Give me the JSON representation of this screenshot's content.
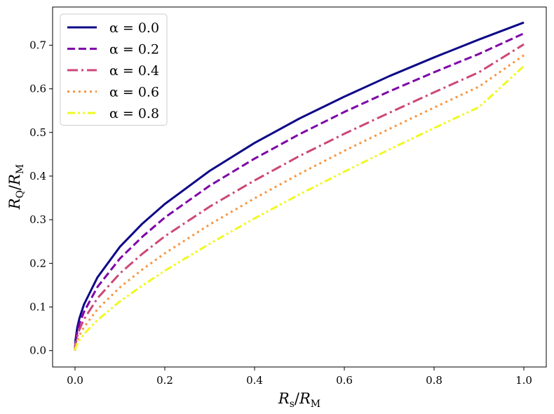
{
  "chart_data": {
    "type": "line",
    "xlabel": {
      "main": "R",
      "sub": "s",
      "sep": "/",
      "main2": "R",
      "sub2": "M"
    },
    "ylabel": {
      "main": "R",
      "sub": "Q",
      "sep": "/",
      "main2": "R",
      "sub2": "M"
    },
    "xlim": [
      -0.05,
      1.05
    ],
    "ylim": [
      -0.0375,
      0.7875
    ],
    "xticks": [
      0.0,
      0.2,
      0.4,
      0.6,
      0.8,
      1.0
    ],
    "xtick_labels": [
      "0.0",
      "0.2",
      "0.4",
      "0.6",
      "0.8",
      "1.0"
    ],
    "yticks": [
      0.0,
      0.1,
      0.2,
      0.3,
      0.4,
      0.5,
      0.6,
      0.7
    ],
    "ytick_labels": [
      "0.0",
      "0.1",
      "0.2",
      "0.3",
      "0.4",
      "0.5",
      "0.6",
      "0.7"
    ],
    "grid": false,
    "legend_position": "top-left",
    "x": [
      0.0,
      0.001,
      0.005,
      0.01,
      0.02,
      0.05,
      0.1,
      0.15,
      0.2,
      0.3,
      0.4,
      0.5,
      0.6,
      0.7,
      0.8,
      0.9,
      1.0
    ],
    "series": [
      {
        "name": "α = 0.0",
        "color": "#0d0887",
        "dash": "solid",
        "values": [
          0.0,
          0.024,
          0.053,
          0.075,
          0.106,
          0.168,
          0.238,
          0.291,
          0.336,
          0.412,
          0.476,
          0.532,
          0.582,
          0.629,
          0.672,
          0.713,
          0.752
        ]
      },
      {
        "name": "α = 0.2",
        "color": "#7e03a8",
        "dash": "dashed",
        "values": [
          0.0,
          0.02,
          0.043,
          0.062,
          0.089,
          0.146,
          0.211,
          0.261,
          0.305,
          0.378,
          0.44,
          0.496,
          0.547,
          0.594,
          0.638,
          0.68,
          0.727
        ]
      },
      {
        "name": "α = 0.4",
        "color": "#cc4778",
        "dash": "dashdot",
        "values": [
          0.0,
          0.014,
          0.033,
          0.049,
          0.072,
          0.12,
          0.177,
          0.222,
          0.262,
          0.33,
          0.39,
          0.446,
          0.497,
          0.545,
          0.592,
          0.638,
          0.702
        ]
      },
      {
        "name": "α = 0.6",
        "color": "#f89540",
        "dash": "dotted",
        "values": [
          0.0,
          0.01,
          0.024,
          0.036,
          0.054,
          0.095,
          0.145,
          0.186,
          0.223,
          0.289,
          0.349,
          0.405,
          0.458,
          0.508,
          0.557,
          0.605,
          0.677
        ]
      },
      {
        "name": "α = 0.8",
        "color": "#f0f921",
        "dash": "dashdotdot",
        "values": [
          0.0,
          0.006,
          0.015,
          0.024,
          0.038,
          0.07,
          0.113,
          0.149,
          0.183,
          0.245,
          0.303,
          0.358,
          0.41,
          0.461,
          0.51,
          0.558,
          0.652
        ]
      }
    ]
  }
}
